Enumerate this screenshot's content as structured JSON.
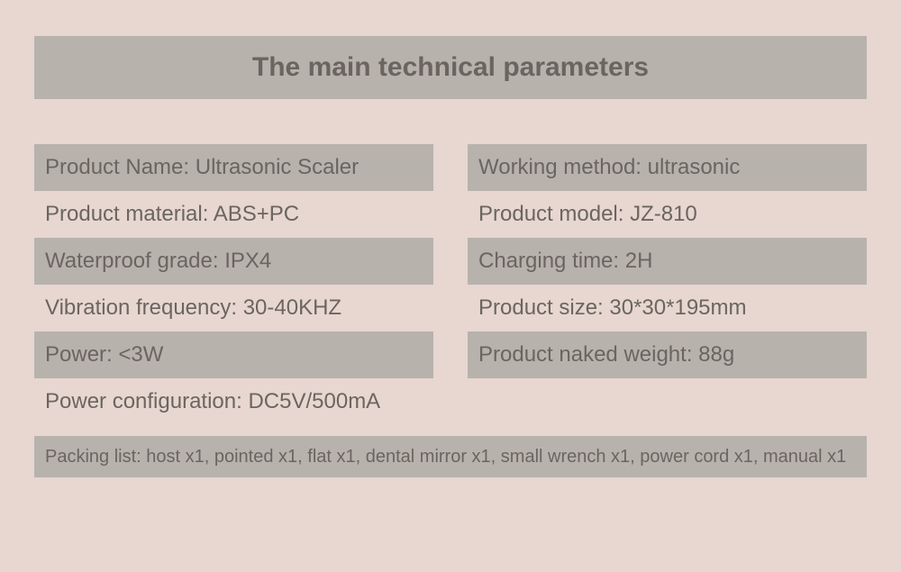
{
  "colors": {
    "page_bg": "#e7d7d0",
    "band_bg": "#b8b2ad",
    "text": "#6b6560"
  },
  "title": "The main technical parameters",
  "left_rows": [
    {
      "label": "Product Name: Ultrasonic Scaler",
      "shaded": true
    },
    {
      "label": "Product material: ABS+PC",
      "shaded": false
    },
    {
      "label": "Waterproof grade: IPX4",
      "shaded": true
    },
    {
      "label": "Vibration frequency: 30-40KHZ",
      "shaded": false
    },
    {
      "label": "Power: <3W",
      "shaded": true
    },
    {
      "label": "",
      "shaded": false
    }
  ],
  "right_rows": [
    {
      "label": "Working method: ultrasonic",
      "shaded": true
    },
    {
      "label": "Product model: JZ-810",
      "shaded": false
    },
    {
      "label": "Charging time: 2H",
      "shaded": true
    },
    {
      "label": "Product size: 30*30*195mm",
      "shaded": false
    },
    {
      "label": "Product naked weight: 88g",
      "shaded": true
    }
  ],
  "power_config": "Power configuration: DC5V/500mA",
  "packing": "Packing list: host x1, pointed x1, flat x1, dental mirror x1, small wrench x1, power cord x1, manual x1"
}
